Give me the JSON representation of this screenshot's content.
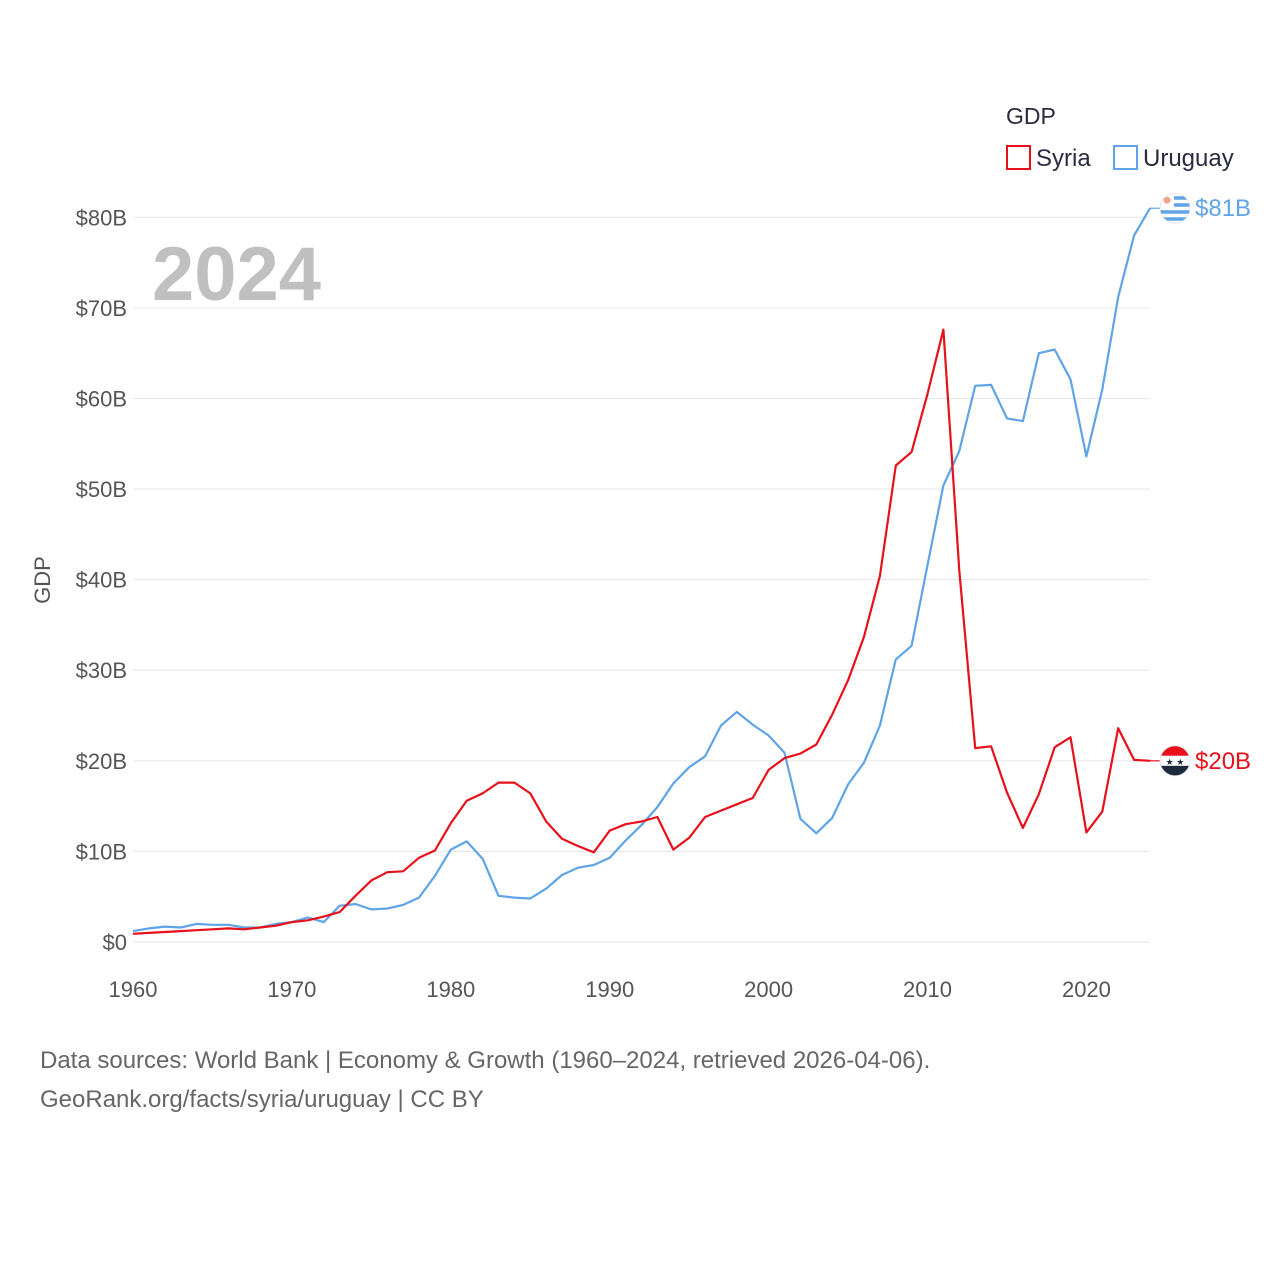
{
  "chart_data": {
    "type": "line",
    "legend_title": "GDP",
    "ylabel": "GDP",
    "year_label": "2024",
    "x": [
      1960,
      1961,
      1962,
      1963,
      1964,
      1965,
      1966,
      1967,
      1968,
      1969,
      1970,
      1971,
      1972,
      1973,
      1974,
      1975,
      1976,
      1977,
      1978,
      1979,
      1980,
      1981,
      1982,
      1983,
      1984,
      1985,
      1986,
      1987,
      1988,
      1989,
      1990,
      1991,
      1992,
      1993,
      1994,
      1995,
      1996,
      1997,
      1998,
      1999,
      2000,
      2001,
      2002,
      2003,
      2004,
      2005,
      2006,
      2007,
      2008,
      2009,
      2010,
      2011,
      2012,
      2013,
      2014,
      2015,
      2016,
      2017,
      2018,
      2019,
      2020,
      2021,
      2022,
      2023,
      2024
    ],
    "xlim": [
      1960,
      2024
    ],
    "xticks": [
      1960,
      1970,
      1980,
      1990,
      2000,
      2010,
      2020
    ],
    "ylim": [
      0,
      85
    ],
    "yticks": [
      0,
      10,
      20,
      30,
      40,
      50,
      60,
      70,
      80
    ],
    "ytick_labels": [
      "$0",
      "$10B",
      "$20B",
      "$30B",
      "$40B",
      "$50B",
      "$60B",
      "$70B",
      "$80B"
    ],
    "series": [
      {
        "name": "Syria",
        "color": "#e8101a",
        "end_label": "$20B",
        "flag": "syria-flag",
        "values": [
          0.9,
          1.0,
          1.1,
          1.2,
          1.3,
          1.4,
          1.5,
          1.4,
          1.6,
          1.8,
          2.2,
          2.4,
          2.8,
          3.3,
          5.1,
          6.8,
          7.7,
          7.8,
          9.3,
          10.1,
          13.1,
          15.6,
          16.4,
          17.6,
          17.6,
          16.4,
          13.3,
          11.4,
          10.6,
          9.9,
          12.3,
          13.0,
          13.3,
          13.8,
          10.2,
          11.5,
          13.8,
          14.5,
          15.2,
          15.9,
          19.0,
          20.3,
          20.8,
          21.8,
          25.1,
          28.9,
          33.7,
          40.4,
          52.6,
          54.1,
          60.5,
          67.6,
          41.0,
          21.4,
          21.6,
          16.5,
          12.6,
          16.3,
          21.5,
          22.6,
          12.1,
          14.4,
          23.6,
          20.1,
          20.0
        ]
      },
      {
        "name": "Uruguay",
        "color": "#5fa4e8",
        "end_label": "$81B",
        "flag": "uruguay-flag",
        "values": [
          1.2,
          1.5,
          1.7,
          1.6,
          2.0,
          1.9,
          1.9,
          1.6,
          1.6,
          2.0,
          2.2,
          2.7,
          2.2,
          4.0,
          4.2,
          3.6,
          3.7,
          4.1,
          4.9,
          7.3,
          10.2,
          11.1,
          9.2,
          5.1,
          4.9,
          4.8,
          5.9,
          7.4,
          8.2,
          8.5,
          9.3,
          11.2,
          12.9,
          14.9,
          17.5,
          19.3,
          20.5,
          23.9,
          25.4,
          24.0,
          22.8,
          20.9,
          13.6,
          12.0,
          13.7,
          17.4,
          19.8,
          23.9,
          31.2,
          32.7,
          41.6,
          50.4,
          54.2,
          61.4,
          61.5,
          57.8,
          57.5,
          65.0,
          65.4,
          62.1,
          53.6,
          61.0,
          71.2,
          78.0,
          81.0
        ]
      }
    ]
  },
  "footer": {
    "line1": "Data sources: World Bank | Economy & Growth (1960–2024, retrieved 2026-04-06).",
    "line2": "GeoRank.org/facts/syria/uruguay | CC BY"
  }
}
